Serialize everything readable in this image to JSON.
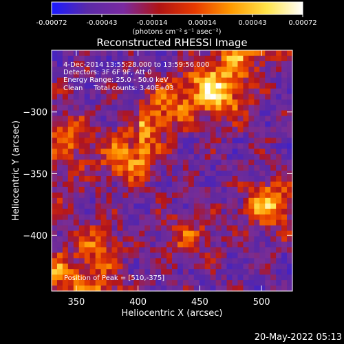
{
  "chart_data": {
    "type": "heatmap",
    "title": "Reconstructed RHESSI Image",
    "xlabel": "Heliocentric X (arcsec)",
    "ylabel": "Heliocentric Y (arcsec)",
    "xlim": [
      330,
      525
    ],
    "ylim": [
      -445,
      -250
    ],
    "x_ticks": [
      350,
      400,
      450,
      500
    ],
    "y_ticks": [
      -300,
      -350,
      -400
    ],
    "grid": false,
    "colorbar": {
      "range": [
        -0.00072,
        0.00072
      ],
      "ticks": [
        "-0.00072",
        "-0.00043",
        "-0.00014",
        "0.00014",
        "0.00043",
        "0.00072"
      ],
      "unit_label": "(photons cm⁻² s⁻¹ asec⁻²)",
      "colors": [
        "#1a1aff",
        "#5b2aa8",
        "#7a2aa0",
        "#b01414",
        "#e83a00",
        "#ff9a00",
        "#ffe44a",
        "#ffffff"
      ]
    },
    "annotations": {
      "time_range": "4-Dec-2014 13:55:28.000 to 13:59:56.000",
      "detectors": "Detectors: 3F 6F 9F, Att 0",
      "energy": "Energy Range: 25.0 - 50.0 keV",
      "clean": "Clean     Total counts: 3.40E+03",
      "peak": "Position of Peak = [510,-375]"
    },
    "peak": {
      "x": 510,
      "y": -375
    },
    "bright_features": [
      {
        "x": 507,
        "y": -375,
        "amp": 1.0
      },
      {
        "x": 395,
        "y": -340,
        "amp": 0.8
      },
      {
        "x": 368,
        "y": -410,
        "amp": 0.7
      },
      {
        "x": 340,
        "y": -320,
        "amp": 0.65
      },
      {
        "x": 470,
        "y": -290,
        "amp": 0.75
      },
      {
        "x": 440,
        "y": -400,
        "amp": 0.55
      }
    ]
  },
  "timestamp": "20-May-2022 05:13"
}
